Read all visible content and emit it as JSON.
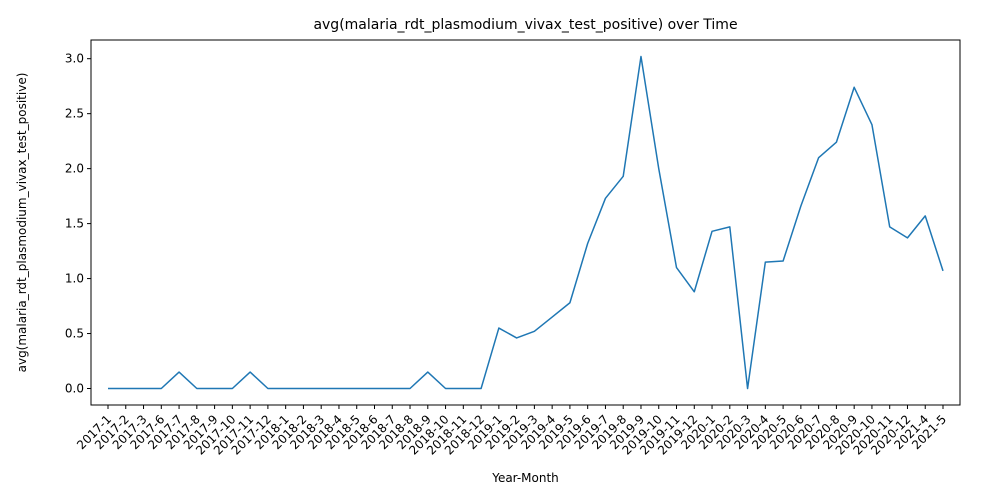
{
  "chart_data": {
    "type": "line",
    "title": "avg(malaria_rdt_plasmodium_vivax_test_positive) over Time",
    "xlabel": "Year-Month",
    "ylabel": "avg(malaria_rdt_plasmodium_vivax_test_positive)",
    "ylim": [
      -0.15,
      3.17
    ],
    "yticks": [
      "0.0",
      "0.5",
      "1.0",
      "1.5",
      "2.0",
      "2.5",
      "3.0"
    ],
    "grid": false,
    "line_color": "#1f77b4",
    "series": [
      {
        "x": [
          "2017-1",
          "2017-2",
          "2017-3",
          "2017-6",
          "2017-7",
          "2017-8",
          "2017-9",
          "2017-10",
          "2017-11",
          "2017-12",
          "2018-1",
          "2018-2",
          "2018-3",
          "2018-4",
          "2018-5",
          "2018-6",
          "2018-7",
          "2018-8",
          "2018-9",
          "2018-10",
          "2018-11",
          "2018-12",
          "2019-1",
          "2019-2",
          "2019-3",
          "2019-4",
          "2019-5",
          "2019-6",
          "2019-7",
          "2019-8",
          "2019-9",
          "2019-10",
          "2019-11",
          "2019-12",
          "2020-1",
          "2020-2",
          "2020-3",
          "2020-4",
          "2020-5",
          "2020-6",
          "2020-7",
          "2020-8",
          "2020-9",
          "2020-10",
          "2020-11",
          "2020-12",
          "2021-4",
          "2021-5"
        ],
        "values": [
          0.0,
          0.0,
          0.0,
          0.0,
          0.15,
          0.0,
          0.0,
          0.0,
          0.15,
          0.0,
          0.0,
          0.0,
          0.0,
          0.0,
          0.0,
          0.0,
          0.0,
          0.0,
          0.15,
          0.0,
          0.0,
          0.0,
          0.55,
          0.46,
          0.52,
          0.65,
          0.78,
          1.32,
          1.73,
          1.93,
          3.02,
          2.0,
          1.1,
          0.88,
          1.43,
          1.47,
          0.0,
          1.15,
          1.16,
          1.66,
          2.1,
          2.24,
          2.74,
          2.4,
          1.47,
          1.37,
          1.57,
          1.07
        ]
      }
    ]
  }
}
